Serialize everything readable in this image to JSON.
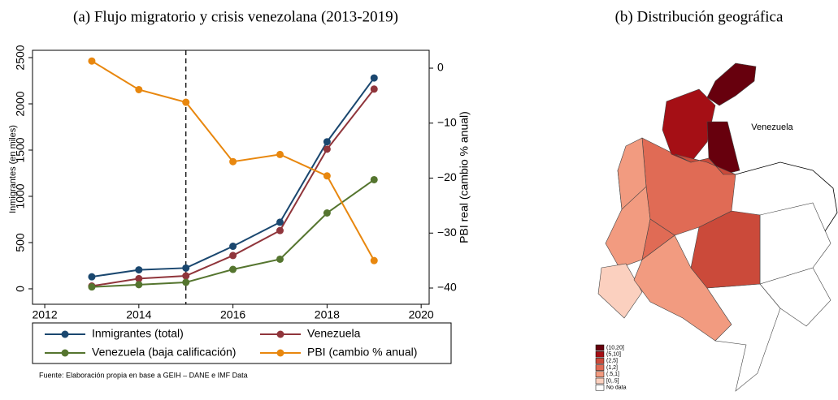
{
  "chart_data": [
    {
      "type": "line",
      "title": "(a) Flujo migratorio y crisis venezolana (2013-2019)",
      "ylabel": "Inmigrantes (en miles)",
      "y2label": "PBI real (cambio % anual)",
      "x": [
        2013,
        2014,
        2015,
        2016,
        2017,
        2018,
        2019
      ],
      "xlim": [
        2011.74,
        2020.17
      ],
      "xticks": [
        2012,
        2014,
        2016,
        2018,
        2020
      ],
      "ylim": [
        -167,
        2579
      ],
      "yticks": [
        0,
        500,
        1000,
        1500,
        2000,
        2500
      ],
      "y2lim": [
        -42.95,
        3.25
      ],
      "y2ticks": [
        0,
        {
          "value": -10,
          "label": "−10"
        },
        {
          "value": -20,
          "label": "−20"
        },
        {
          "value": -30,
          "label": "−30"
        },
        {
          "value": -40,
          "label": "−40"
        }
      ],
      "vline": 2015,
      "grid": false,
      "legend": "bottom",
      "note": "Fuente: Elaboración propia en base a GEIH – DANE e IMF Data",
      "series": [
        {
          "name": "Inmigrantes (total)",
          "color": "#1a476f",
          "values": [
            130,
            205,
            225,
            460,
            720,
            1590,
            2280
          ]
        },
        {
          "name": "Venezuela",
          "color": "#90353b",
          "values": [
            30,
            110,
            140,
            360,
            630,
            1510,
            2160
          ]
        },
        {
          "name": "Venezuela (baja calificación)",
          "color": "#55752f",
          "values": [
            20,
            45,
            70,
            210,
            320,
            820,
            1180
          ]
        },
        {
          "name": "PBI (cambio % anual)",
          "color": "#e8870e",
          "axis": "y2",
          "values": [
            1.3,
            -3.9,
            -6.2,
            -17.0,
            -15.7,
            -19.6,
            -35.0
          ]
        }
      ]
    },
    {
      "type": "map",
      "title": "(b) Distribución geográfica",
      "annotation": "Venezuela",
      "legend": [
        {
          "label": "(10,20]",
          "color": "#67000d"
        },
        {
          "label": "(5,10]",
          "color": "#a50f15"
        },
        {
          "label": "(2,5]",
          "color": "#cb4a3a"
        },
        {
          "label": "(1,2]",
          "color": "#e06b55"
        },
        {
          "label": "(.5,1]",
          "color": "#f29b80"
        },
        {
          "label": "[0,.5]",
          "color": "#fbd0bf"
        },
        {
          "label": "No data",
          "color": "#ffffff"
        }
      ]
    }
  ]
}
